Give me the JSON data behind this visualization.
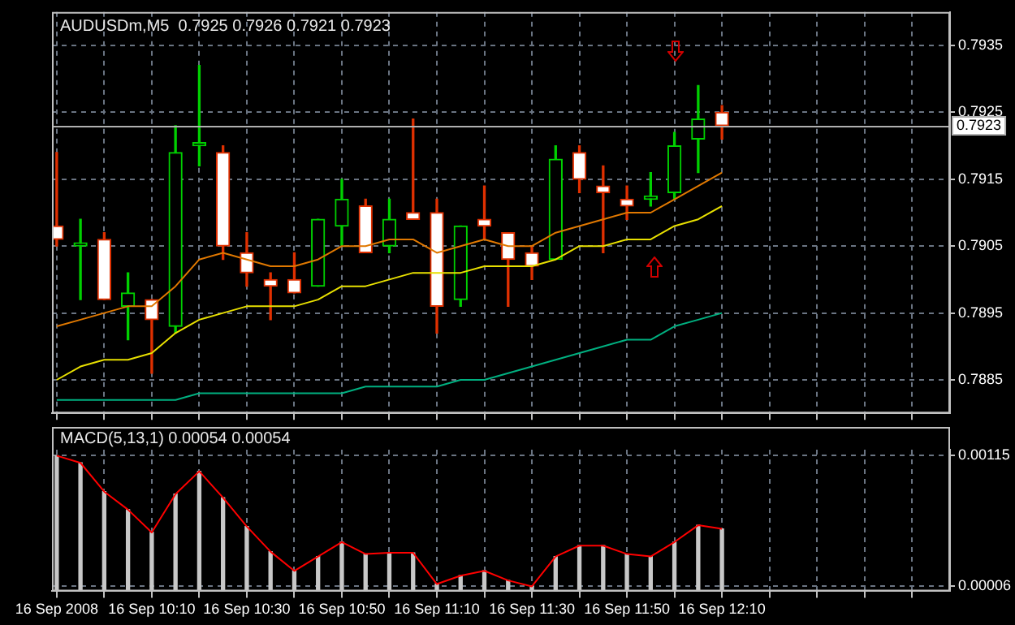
{
  "chart_data": [
    {
      "type": "candlestick",
      "title": "AUDUSDm,M5  0.7925 0.7926 0.7921 0.7923",
      "x": [
        "2008-09-16T09:50",
        "2008-09-16T09:55",
        "2008-09-16T10:00",
        "2008-09-16T10:05",
        "2008-09-16T10:10",
        "2008-09-16T10:15",
        "2008-09-16T10:20",
        "2008-09-16T10:25",
        "2008-09-16T10:30",
        "2008-09-16T10:35",
        "2008-09-16T10:40",
        "2008-09-16T10:45",
        "2008-09-16T10:50",
        "2008-09-16T10:55",
        "2008-09-16T11:00",
        "2008-09-16T11:05",
        "2008-09-16T11:10",
        "2008-09-16T11:15",
        "2008-09-16T11:20",
        "2008-09-16T11:25",
        "2008-09-16T11:30",
        "2008-09-16T11:35",
        "2008-09-16T11:40",
        "2008-09-16T11:45",
        "2008-09-16T11:50",
        "2008-09-16T11:55",
        "2008-09-16T12:00",
        "2008-09-16T12:05",
        "2008-09-16T12:10"
      ],
      "ohlc": [
        [
          0.7908,
          0.7919,
          0.7905,
          0.7906
        ],
        [
          0.7905,
          0.7909,
          0.7897,
          0.7905
        ],
        [
          0.7906,
          0.7907,
          0.7897,
          0.7897
        ],
        [
          0.7896,
          0.7901,
          0.7891,
          0.7898
        ],
        [
          0.7897,
          0.7897,
          0.7886,
          0.7894
        ],
        [
          0.7893,
          0.7923,
          0.7892,
          0.7919
        ],
        [
          0.792,
          0.7932,
          0.7917,
          0.792
        ],
        [
          0.7919,
          0.792,
          0.7903,
          0.7905
        ],
        [
          0.7904,
          0.7907,
          0.7899,
          0.7901
        ],
        [
          0.79,
          0.7901,
          0.7894,
          0.7899
        ],
        [
          0.79,
          0.7904,
          0.7898,
          0.7898
        ],
        [
          0.7899,
          0.7909,
          0.7899,
          0.7909
        ],
        [
          0.7908,
          0.7915,
          0.7905,
          0.7912
        ],
        [
          0.7911,
          0.7912,
          0.7904,
          0.7904
        ],
        [
          0.7905,
          0.7912,
          0.7904,
          0.7909
        ],
        [
          0.791,
          0.7924,
          0.7909,
          0.7909
        ],
        [
          0.791,
          0.7912,
          0.7892,
          0.7896
        ],
        [
          0.7897,
          0.7908,
          0.7896,
          0.7908
        ],
        [
          0.7909,
          0.7914,
          0.7906,
          0.7908
        ],
        [
          0.7907,
          0.7907,
          0.7896,
          0.7903
        ],
        [
          0.7904,
          0.7905,
          0.79,
          0.7902
        ],
        [
          0.7903,
          0.792,
          0.7903,
          0.7918
        ],
        [
          0.7919,
          0.792,
          0.7913,
          0.7915
        ],
        [
          0.7914,
          0.7917,
          0.7904,
          0.7913
        ],
        [
          0.7912,
          0.7914,
          0.7909,
          0.7911
        ],
        [
          0.7912,
          0.7916,
          0.7911,
          0.7912
        ],
        [
          0.7913,
          0.7922,
          0.7912,
          0.792
        ],
        [
          0.7921,
          0.7929,
          0.7916,
          0.7924
        ],
        [
          0.7925,
          0.7926,
          0.7921,
          0.7923
        ]
      ],
      "colors": [
        "#e03000",
        "#00d000",
        "#e03000",
        "#00d000",
        "#e03000",
        "#00d000",
        "#00d000",
        "#e03000",
        "#e03000",
        "#e03000",
        "#e03000",
        "#00d000",
        "#00d000",
        "#e03000",
        "#00d000",
        "#e03000",
        "#e03000",
        "#00d000",
        "#e03000",
        "#e03000",
        "#e03000",
        "#00d000",
        "#e03000",
        "#e03000",
        "#e03000",
        "#00d000",
        "#00d000",
        "#00d000",
        "#e03000"
      ],
      "series": [
        {
          "type": "line",
          "color": "#e07800",
          "values": [
            0.7893,
            0.7894,
            0.7895,
            0.7896,
            0.7896,
            0.7899,
            0.7903,
            0.7904,
            0.7903,
            0.7902,
            0.7902,
            0.7903,
            0.7905,
            0.7905,
            0.7906,
            0.7906,
            0.7904,
            0.7905,
            0.7906,
            0.7905,
            0.7905,
            0.7907,
            0.7908,
            0.7909,
            0.791,
            0.791,
            0.7912,
            0.7914,
            0.7916
          ]
        },
        {
          "type": "line",
          "color": "#e8e000",
          "values": [
            0.7885,
            0.7887,
            0.7888,
            0.7888,
            0.7889,
            0.7892,
            0.7894,
            0.7895,
            0.7896,
            0.7896,
            0.7896,
            0.7897,
            0.7899,
            0.7899,
            0.79,
            0.7901,
            0.7901,
            0.7901,
            0.7902,
            0.7902,
            0.7902,
            0.7903,
            0.7905,
            0.7905,
            0.7906,
            0.7906,
            0.7908,
            0.7909,
            0.7911
          ]
        },
        {
          "type": "line",
          "color": "#00b080",
          "values": [
            0.7882,
            0.7882,
            0.7882,
            0.7882,
            0.7882,
            0.7882,
            0.7883,
            0.7883,
            0.7883,
            0.7883,
            0.7883,
            0.7883,
            0.7883,
            0.7884,
            0.7884,
            0.7884,
            0.7884,
            0.7885,
            0.7885,
            0.7886,
            0.7887,
            0.7888,
            0.7889,
            0.789,
            0.7891,
            0.7891,
            0.7893,
            0.7894,
            0.7895
          ]
        }
      ],
      "xlim": [
        "2008-09-16T09:49",
        "2008-09-16T12:58"
      ],
      "xticks": [
        {
          "value": "2008-09-16T09:50",
          "label": null
        },
        {
          "value": "2008-09-16T10:00",
          "label": null
        },
        {
          "value": "2008-09-16T10:10",
          "label": null
        },
        {
          "value": "2008-09-16T10:20",
          "label": null
        },
        {
          "value": "2008-09-16T10:30",
          "label": null
        },
        {
          "value": "2008-09-16T10:40",
          "label": null
        },
        {
          "value": "2008-09-16T10:50",
          "label": null
        },
        {
          "value": "2008-09-16T11:00",
          "label": null
        },
        {
          "value": "2008-09-16T11:10",
          "label": null
        },
        {
          "value": "2008-09-16T11:20",
          "label": null
        },
        {
          "value": "2008-09-16T11:30",
          "label": null
        },
        {
          "value": "2008-09-16T11:40",
          "label": null
        },
        {
          "value": "2008-09-16T11:50",
          "label": null
        },
        {
          "value": "2008-09-16T12:00",
          "label": null
        },
        {
          "value": "2008-09-16T12:10",
          "label": null
        },
        {
          "value": "2008-09-16T12:20",
          "label": null
        },
        {
          "value": "2008-09-16T12:30",
          "label": null
        },
        {
          "value": "2008-09-16T12:40",
          "label": null
        },
        {
          "value": "2008-09-16T12:50",
          "label": null
        }
      ],
      "ylim": [
        0.788,
        0.794
      ],
      "yticks": [
        0.7885,
        0.7895,
        0.7905,
        0.7915,
        0.7925,
        0.7935
      ],
      "ref_lines": [
        {
          "axis": "y",
          "value": 0.7923,
          "label": "0.7923",
          "color": "#b0b0b0"
        }
      ],
      "grid": true,
      "tick_labels": "y"
    },
    {
      "type": "bar",
      "title": "MACD(5,13,1) 0.00054 0.00054",
      "x": [
        "2008-09-16T09:50",
        "2008-09-16T09:55",
        "2008-09-16T10:00",
        "2008-09-16T10:05",
        "2008-09-16T10:10",
        "2008-09-16T10:15",
        "2008-09-16T10:20",
        "2008-09-16T10:25",
        "2008-09-16T10:30",
        "2008-09-16T10:35",
        "2008-09-16T10:40",
        "2008-09-16T10:45",
        "2008-09-16T10:50",
        "2008-09-16T10:55",
        "2008-09-16T11:00",
        "2008-09-16T11:05",
        "2008-09-16T11:10",
        "2008-09-16T11:15",
        "2008-09-16T11:20",
        "2008-09-16T11:25",
        "2008-09-16T11:30",
        "2008-09-16T11:35",
        "2008-09-16T11:40",
        "2008-09-16T11:45",
        "2008-09-16T11:50",
        "2008-09-16T11:55",
        "2008-09-16T12:00",
        "2008-09-16T12:05",
        "2008-09-16T12:10"
      ],
      "series": [
        {
          "type": "bar",
          "color": "#c8c8c8",
          "values": [
            0.00115,
            0.00109,
            0.00085,
            0.0007,
            0.00051,
            0.00083,
            0.00102,
            0.0008,
            0.00056,
            0.00035,
            0.00019,
            0.00031,
            0.00043,
            0.00033,
            0.00034,
            0.00034,
            8e-05,
            0.00015,
            0.00019,
            0.00011,
            6e-05,
            0.00031,
            0.0004,
            0.0004,
            0.00033,
            0.00031,
            0.00043,
            0.00057,
            0.00054
          ]
        },
        {
          "type": "line",
          "color": "#ff0000",
          "values": [
            0.00115,
            0.00109,
            0.00085,
            0.0007,
            0.00051,
            0.00083,
            0.00102,
            0.0008,
            0.00056,
            0.00035,
            0.00019,
            0.00031,
            0.00043,
            0.00033,
            0.00034,
            0.00034,
            8e-05,
            0.00015,
            0.00019,
            0.00011,
            6e-05,
            0.00031,
            0.0004,
            0.0004,
            0.00033,
            0.00031,
            0.00043,
            0.00057,
            0.00054
          ]
        }
      ],
      "xlim": [
        "2008-09-16T09:49",
        "2008-09-16T12:58"
      ],
      "xticks": [
        {
          "value": "2008-09-16T09:50",
          "label": "16 Sep 2008"
        },
        {
          "value": "2008-09-16T10:00",
          "label": null
        },
        {
          "value": "2008-09-16T10:10",
          "label": "16 Sep 10:10"
        },
        {
          "value": "2008-09-16T10:20",
          "label": null
        },
        {
          "value": "2008-09-16T10:30",
          "label": "16 Sep 10:30"
        },
        {
          "value": "2008-09-16T10:40",
          "label": null
        },
        {
          "value": "2008-09-16T10:50",
          "label": "16 Sep 10:50"
        },
        {
          "value": "2008-09-16T11:00",
          "label": null
        },
        {
          "value": "2008-09-16T11:10",
          "label": "16 Sep 11:10"
        },
        {
          "value": "2008-09-16T11:20",
          "label": null
        },
        {
          "value": "2008-09-16T11:30",
          "label": "16 Sep 11:30"
        },
        {
          "value": "2008-09-16T11:40",
          "label": null
        },
        {
          "value": "2008-09-16T11:50",
          "label": "16 Sep 11:50"
        },
        {
          "value": "2008-09-16T12:00",
          "label": null
        },
        {
          "value": "2008-09-16T12:10",
          "label": "16 Sep 12:10"
        },
        {
          "value": "2008-09-16T12:20",
          "label": null
        },
        {
          "value": "2008-09-16T12:30",
          "label": null
        },
        {
          "value": "2008-09-16T12:40",
          "label": null
        },
        {
          "value": "2008-09-16T12:50",
          "label": null
        }
      ],
      "ylim": [
        2e-05,
        0.0012
      ],
      "yticks": [
        {
          "value": 6e-05,
          "label": "0.00006"
        },
        {
          "value": 0.00115,
          "label": "0.00115"
        }
      ],
      "grid": true
    }
  ]
}
